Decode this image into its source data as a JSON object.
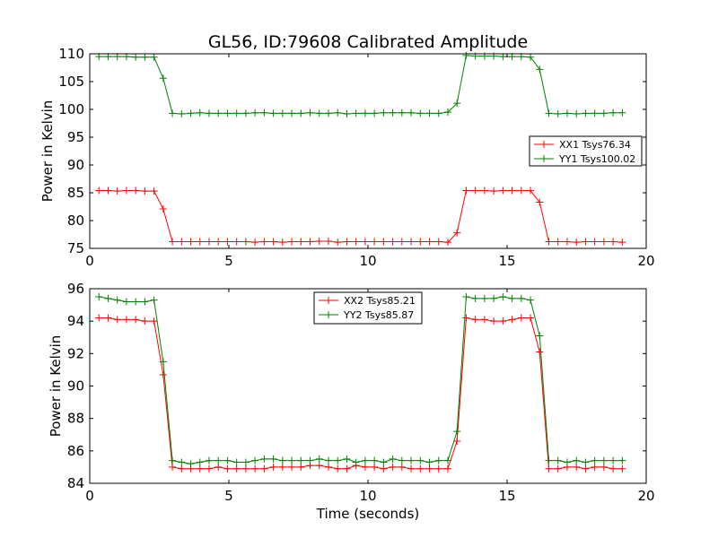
{
  "figure_title": "GL56, ID:79608 Calibrated Amplitude",
  "colors": {
    "red": "#ff0000",
    "green": "#008000"
  },
  "chart_data": [
    {
      "type": "line",
      "title": "GL56, ID:79608 Calibrated Amplitude",
      "xlabel": "",
      "ylabel": "Power in Kelvin",
      "xlim": [
        0,
        20
      ],
      "ylim": [
        75,
        110
      ],
      "xticks": [
        "0",
        "5",
        "10",
        "15",
        "20"
      ],
      "yticks": [
        "75",
        "80",
        "85",
        "90",
        "95",
        "100",
        "105",
        "110"
      ],
      "grid": false,
      "legend_position": "right",
      "x": [
        0.33,
        0.66,
        0.99,
        1.32,
        1.65,
        1.98,
        2.31,
        2.64,
        2.97,
        3.3,
        3.63,
        3.96,
        4.29,
        4.62,
        4.95,
        5.28,
        5.61,
        5.94,
        6.27,
        6.6,
        6.93,
        7.26,
        7.59,
        7.92,
        8.25,
        8.58,
        8.91,
        9.24,
        9.57,
        9.9,
        10.23,
        10.56,
        10.89,
        11.22,
        11.55,
        11.88,
        12.21,
        12.54,
        12.87,
        13.2,
        13.53,
        13.86,
        14.19,
        14.52,
        14.85,
        15.18,
        15.51,
        15.84,
        16.17,
        16.5,
        16.83,
        17.16,
        17.49,
        17.82,
        18.15,
        18.48,
        18.81,
        19.14
      ],
      "series": [
        {
          "name": "XX1 Tsys76.34",
          "color": "#ff0000",
          "values": [
            85.4,
            85.4,
            85.3,
            85.4,
            85.4,
            85.3,
            85.3,
            82.1,
            76.2,
            76.2,
            76.2,
            76.2,
            76.2,
            76.2,
            76.2,
            76.2,
            76.2,
            76.1,
            76.2,
            76.2,
            76.1,
            76.2,
            76.2,
            76.2,
            76.3,
            76.3,
            76.1,
            76.2,
            76.2,
            76.2,
            76.2,
            76.2,
            76.2,
            76.2,
            76.2,
            76.2,
            76.2,
            76.2,
            76.1,
            77.8,
            85.4,
            85.4,
            85.4,
            85.3,
            85.4,
            85.4,
            85.4,
            85.4,
            83.3,
            76.2,
            76.2,
            76.2,
            76.1,
            76.2,
            76.2,
            76.2,
            76.2,
            76.1
          ]
        },
        {
          "name": "YY1 Tsys100.02",
          "color": "#008000",
          "values": [
            109.5,
            109.5,
            109.5,
            109.5,
            109.4,
            109.4,
            109.4,
            105.6,
            99.3,
            99.2,
            99.3,
            99.4,
            99.3,
            99.3,
            99.3,
            99.3,
            99.3,
            99.4,
            99.4,
            99.3,
            99.3,
            99.3,
            99.3,
            99.4,
            99.3,
            99.3,
            99.4,
            99.2,
            99.3,
            99.3,
            99.3,
            99.4,
            99.4,
            99.4,
            99.4,
            99.3,
            99.3,
            99.3,
            99.5,
            101.1,
            109.7,
            109.6,
            109.6,
            109.6,
            109.5,
            109.5,
            109.5,
            109.4,
            107.2,
            99.3,
            99.2,
            99.3,
            99.2,
            99.3,
            99.3,
            99.3,
            99.4,
            99.4
          ]
        }
      ]
    },
    {
      "type": "line",
      "title": "",
      "xlabel": "Time (seconds)",
      "ylabel": "Power in Kelvin",
      "xlim": [
        0,
        20
      ],
      "ylim": [
        84,
        96
      ],
      "xticks": [
        "0",
        "5",
        "10",
        "15",
        "20"
      ],
      "yticks": [
        "84",
        "86",
        "88",
        "90",
        "92",
        "94",
        "96"
      ],
      "grid": false,
      "legend_position": "top-center",
      "x": [
        0.33,
        0.66,
        0.99,
        1.32,
        1.65,
        1.98,
        2.31,
        2.64,
        2.97,
        3.3,
        3.63,
        3.96,
        4.29,
        4.62,
        4.95,
        5.28,
        5.61,
        5.94,
        6.27,
        6.6,
        6.93,
        7.26,
        7.59,
        7.92,
        8.25,
        8.58,
        8.91,
        9.24,
        9.57,
        9.9,
        10.23,
        10.56,
        10.89,
        11.22,
        11.55,
        11.88,
        12.21,
        12.54,
        12.87,
        13.2,
        13.53,
        13.86,
        14.19,
        14.52,
        14.85,
        15.18,
        15.51,
        15.84,
        16.17,
        16.5,
        16.83,
        17.16,
        17.49,
        17.82,
        18.15,
        18.48,
        18.81,
        19.14
      ],
      "series": [
        {
          "name": "XX2 Tsys85.21",
          "color": "#ff0000",
          "values": [
            94.2,
            94.2,
            94.1,
            94.1,
            94.1,
            94.0,
            94.0,
            90.7,
            85.0,
            84.9,
            84.9,
            84.9,
            84.9,
            85.0,
            84.9,
            84.9,
            84.9,
            84.9,
            84.9,
            85.0,
            85.0,
            85.0,
            85.0,
            85.1,
            85.1,
            85.0,
            84.9,
            84.9,
            85.1,
            85.0,
            85.0,
            84.9,
            85.0,
            85.0,
            84.9,
            84.9,
            84.9,
            84.9,
            84.9,
            86.6,
            94.2,
            94.1,
            94.1,
            94.0,
            94.0,
            94.1,
            94.2,
            94.2,
            92.1,
            84.9,
            84.9,
            85.0,
            85.0,
            84.9,
            85.0,
            85.0,
            84.9,
            84.9
          ]
        },
        {
          "name": "YY2 Tsys85.87",
          "color": "#008000",
          "values": [
            95.5,
            95.4,
            95.3,
            95.2,
            95.2,
            95.2,
            95.3,
            91.5,
            85.4,
            85.3,
            85.2,
            85.3,
            85.4,
            85.4,
            85.4,
            85.3,
            85.3,
            85.4,
            85.5,
            85.5,
            85.4,
            85.4,
            85.4,
            85.4,
            85.5,
            85.4,
            85.4,
            85.5,
            85.3,
            85.4,
            85.4,
            85.3,
            85.5,
            85.4,
            85.4,
            85.4,
            85.3,
            85.4,
            85.4,
            87.2,
            95.5,
            95.4,
            95.4,
            95.4,
            95.5,
            95.4,
            95.4,
            95.3,
            93.1,
            85.4,
            85.4,
            85.3,
            85.4,
            85.3,
            85.4,
            85.4,
            85.4,
            85.4
          ]
        }
      ]
    }
  ]
}
